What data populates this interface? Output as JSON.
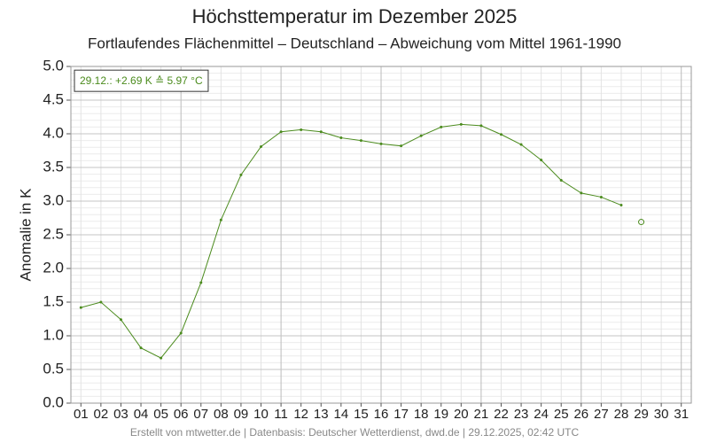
{
  "chart_data": {
    "type": "line",
    "title": "Höchsttemperatur im Dezember 2025",
    "subtitle": "Fortlaufendes Flächenmittel – Deutschland – Abweichung vom Mittel 1961-1990",
    "ylabel": "Anomalie in K",
    "annotation": "29.12.: +2.69 K ≙ 5.97 °C",
    "footer": "Erstellt von mtwetter.de | Datenbasis: Deutscher Wetterdienst, dwd.de | 29.12.2025, 02:42 UTC",
    "categories": [
      "01",
      "02",
      "03",
      "04",
      "05",
      "06",
      "07",
      "08",
      "09",
      "10",
      "11",
      "12",
      "13",
      "14",
      "15",
      "16",
      "17",
      "18",
      "19",
      "20",
      "21",
      "22",
      "23",
      "24",
      "25",
      "26",
      "27",
      "28",
      "29",
      "30",
      "31"
    ],
    "series": [
      {
        "color": "#4b8b1d",
        "values": [
          1.42,
          1.5,
          1.24,
          0.82,
          0.67,
          1.04,
          1.79,
          2.72,
          3.39,
          3.81,
          4.03,
          4.06,
          4.03,
          3.94,
          3.9,
          3.85,
          3.82,
          3.97,
          4.1,
          4.14,
          4.12,
          3.99,
          3.84,
          3.61,
          3.31,
          3.12,
          3.06,
          2.94,
          null,
          null,
          null
        ]
      },
      {
        "color": "#4b8b1d",
        "marker": "open",
        "values": [
          null,
          null,
          null,
          null,
          null,
          null,
          null,
          null,
          null,
          null,
          null,
          null,
          null,
          null,
          null,
          null,
          null,
          null,
          null,
          null,
          null,
          null,
          null,
          null,
          null,
          null,
          null,
          null,
          2.69,
          null,
          null
        ]
      }
    ],
    "ylim": [
      0,
      5
    ],
    "yticks": [
      {
        "value": 0,
        "label": "0.0"
      },
      0.5,
      {
        "value": 1,
        "label": "1.0"
      },
      1.5,
      {
        "value": 2,
        "label": "2.0"
      },
      2.5,
      {
        "value": 3,
        "label": "3.0"
      },
      3.5,
      {
        "value": 4,
        "label": "4.0"
      },
      4.5,
      {
        "value": 5,
        "label": "5.0"
      }
    ],
    "yminorticks": [
      0.1,
      0.2,
      0.3,
      0.4,
      0.6,
      0.7,
      0.8,
      0.9,
      1.1,
      1.2,
      1.3,
      1.4,
      1.6,
      1.7,
      1.8,
      1.9,
      2.1,
      2.2,
      2.3,
      2.4,
      2.6,
      2.7,
      2.8,
      2.9,
      3.1,
      3.2,
      3.3,
      3.4,
      3.6,
      3.7,
      3.8,
      3.9,
      4.1,
      4.2,
      4.3,
      4.4,
      4.6,
      4.7,
      4.8,
      4.9
    ],
    "grid": true
  }
}
